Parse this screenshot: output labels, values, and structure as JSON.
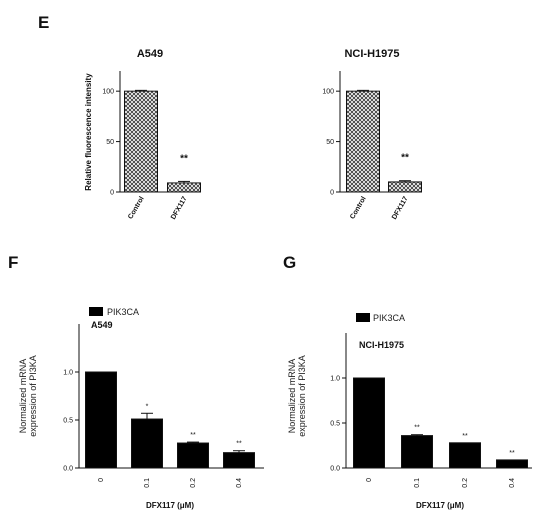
{
  "panels": {
    "e": "E",
    "f": "F",
    "g": "G"
  },
  "colors": {
    "bar_fill_solid": "#000000",
    "hatch_stroke": "#333333",
    "axis": "#111111"
  },
  "chart_data": [
    {
      "id": "E-A549",
      "type": "bar",
      "title": "A549",
      "ylabel": "Relative fluorescence intensity",
      "xlabel": "",
      "categories": [
        "Control",
        "DFX117"
      ],
      "values": [
        100,
        9
      ],
      "errors": [
        0.8,
        1.5
      ],
      "ylim": [
        0,
        120
      ],
      "yticks": [
        0,
        50,
        100
      ],
      "significance": [
        "",
        "**"
      ],
      "fill": "hatch",
      "legend": null,
      "grid": false
    },
    {
      "id": "E-NCI-H1975",
      "type": "bar",
      "title": "NCI-H1975",
      "ylabel": "",
      "xlabel": "",
      "categories": [
        "Control",
        "DFX117"
      ],
      "values": [
        100,
        10
      ],
      "errors": [
        0.8,
        1.2
      ],
      "ylim": [
        0,
        120
      ],
      "yticks": [
        0,
        50,
        100
      ],
      "significance": [
        "",
        "**"
      ],
      "fill": "hatch",
      "legend": null,
      "grid": false
    },
    {
      "id": "F",
      "type": "bar",
      "title": "",
      "cell_label": "A549",
      "ylabel_lines": [
        "Normalized mRNA",
        "expression of PI3KA"
      ],
      "xlabel": "DFX117 (μM)",
      "categories": [
        "0",
        "0.1",
        "0.2",
        "0.4"
      ],
      "values": [
        1.0,
        0.51,
        0.26,
        0.16
      ],
      "errors": [
        0.0,
        0.06,
        0.01,
        0.02
      ],
      "ylim": [
        0,
        1.5
      ],
      "yticks": [
        0.0,
        0.5,
        1.0
      ],
      "ytick_labels": [
        "0.0",
        "0.5",
        "1.0"
      ],
      "significance": [
        "",
        "*",
        "**",
        "**"
      ],
      "fill": "solid",
      "series": [
        {
          "name": "PIK3CA"
        }
      ],
      "legend": "top-left",
      "grid": false
    },
    {
      "id": "G",
      "type": "bar",
      "title": "",
      "cell_label": "NCI-H1975",
      "ylabel_lines": [
        "Normalized mRNA",
        "expression of PI3KA"
      ],
      "xlabel": "DFX117 (μM)",
      "categories": [
        "0",
        "0.1",
        "0.2",
        "0.4"
      ],
      "values": [
        1.0,
        0.36,
        0.28,
        0.09
      ],
      "errors": [
        0.0,
        0.01,
        0.0,
        0.0
      ],
      "ylim": [
        0,
        1.5
      ],
      "yticks": [
        0.0,
        0.5,
        1.0
      ],
      "ytick_labels": [
        "0.0",
        "0.5",
        "1.0"
      ],
      "significance": [
        "",
        "**",
        "**",
        "**"
      ],
      "fill": "solid",
      "series": [
        {
          "name": "PIK3CA"
        }
      ],
      "legend": "top-left",
      "grid": false
    }
  ]
}
